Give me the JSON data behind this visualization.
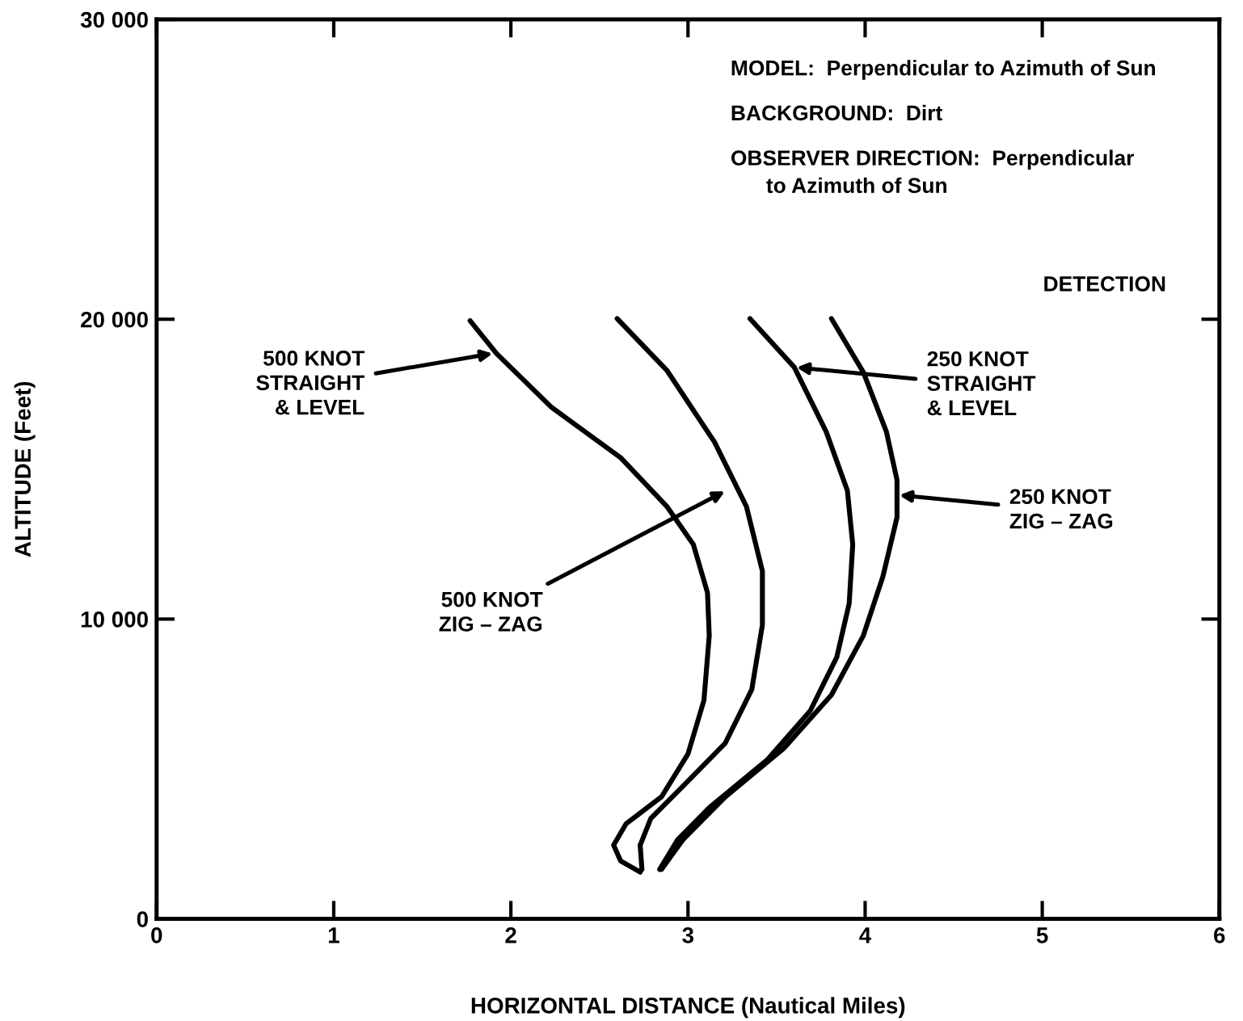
{
  "chart_data": {
    "type": "line",
    "xlabel": "HORIZONTAL DISTANCE (Nautical Miles)",
    "ylabel": "ALTITUDE (Feet)",
    "xlim": [
      0,
      6
    ],
    "ylim": [
      0,
      30000
    ],
    "xticks": [
      0,
      1,
      2,
      3,
      4,
      5,
      6
    ],
    "yticks": [
      0,
      {
        "value": 10000,
        "label": "10 000"
      },
      {
        "value": 20000,
        "label": "20 000"
      },
      {
        "value": 30000,
        "label": "30 000"
      }
    ],
    "grid": false,
    "marker": "none",
    "line_style": "solid",
    "series": [
      {
        "color": "#000000",
        "x": [
          1.77,
          1.92,
          2.23,
          2.62,
          2.88,
          3.03,
          3.11,
          3.12,
          3.09,
          3.0,
          2.85,
          2.65,
          2.58,
          2.62,
          2.73
        ],
        "values": [
          19950,
          18850,
          17060,
          15380,
          13760,
          12490,
          10880,
          9450,
          7290,
          5500,
          4070,
          3170,
          2460,
          1930,
          1560
        ]
      },
      {
        "color": "#000000",
        "x": [
          2.6,
          2.88,
          3.15,
          3.33,
          3.42,
          3.42,
          3.36,
          3.21,
          2.97,
          2.79,
          2.73,
          2.74
        ],
        "values": [
          20020,
          18300,
          15900,
          13750,
          11600,
          9800,
          7650,
          5860,
          4420,
          3350,
          2460,
          1650
        ]
      },
      {
        "color": "#000000",
        "x": [
          3.35,
          3.6,
          3.78,
          3.9,
          3.93,
          3.91,
          3.84,
          3.69,
          3.45,
          3.12,
          2.94,
          2.84
        ],
        "values": [
          20020,
          18400,
          16250,
          14280,
          12490,
          10520,
          8730,
          6940,
          5320,
          3710,
          2630,
          1650
        ]
      },
      {
        "color": "#000000",
        "x": [
          3.81,
          3.99,
          4.12,
          4.18,
          4.18,
          4.1,
          3.99,
          3.81,
          3.54,
          3.21,
          2.97,
          2.85
        ],
        "values": [
          20020,
          18230,
          16250,
          14640,
          13390,
          11410,
          9450,
          7470,
          5680,
          4070,
          2630,
          1650
        ]
      }
    ],
    "annotations": [
      "MODEL:  Perpendicular to Azimuth of Sun",
      "BACKGROUND:  Dirt",
      "OBSERVER DIRECTION:  Perpendicular\n      to Azimuth of Sun",
      "DETECTION",
      {
        "text": "500 KNOT\nSTRAIGHT\n& LEVEL",
        "x": 1.91,
        "y": 18870
      },
      {
        "text": "500 KNOT\nZIG – ZAG",
        "x": 3.22,
        "y": 14300
      },
      {
        "text": "250 KNOT\nSTRAIGHT\n& LEVEL",
        "x": 3.6,
        "y": 18400
      },
      {
        "text": "250 KNOT\nZIG – ZAG",
        "x": 4.18,
        "y": 14140
      }
    ]
  }
}
